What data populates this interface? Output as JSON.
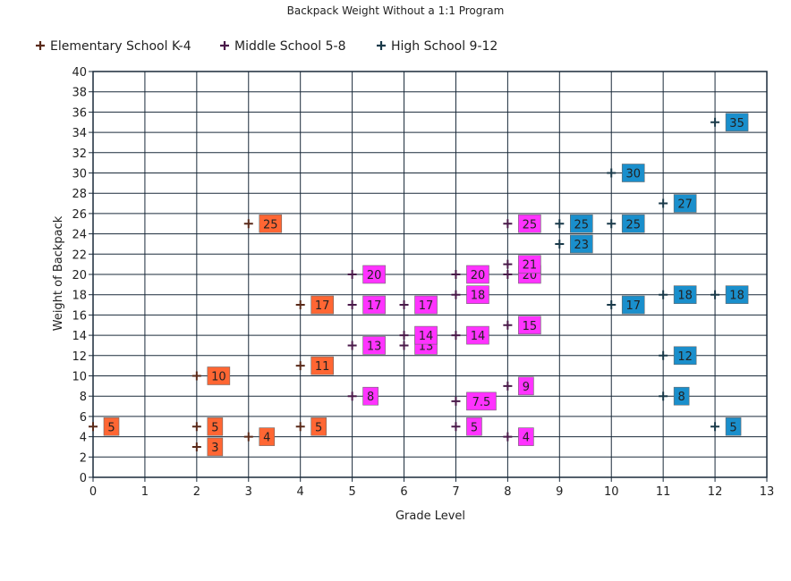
{
  "chart_data": {
    "type": "scatter",
    "title": "Backpack Weight Without a 1:1 Program",
    "xlabel": "Grade Level",
    "ylabel": "Weight of Backpack",
    "xlim": [
      0,
      13
    ],
    "ylim": [
      0,
      40
    ],
    "x_ticks": [
      "0",
      "1",
      "2",
      "3",
      "4",
      "5",
      "6",
      "7",
      "8",
      "9",
      "10",
      "11",
      "12",
      "13"
    ],
    "y_ticks": [
      "0",
      "2",
      "4",
      "6",
      "8",
      "10",
      "12",
      "14",
      "16",
      "18",
      "20",
      "22",
      "24",
      "26",
      "28",
      "30",
      "32",
      "34",
      "36",
      "38",
      "40"
    ],
    "grid": true,
    "legend_position": "top",
    "series": [
      {
        "name": "Elementary School K-4",
        "color": "#ff6633",
        "marker_color": "#5a2a1a",
        "points": [
          {
            "x": 0,
            "y": 5,
            "label": "5"
          },
          {
            "x": 2,
            "y": 5,
            "label": "5"
          },
          {
            "x": 2,
            "y": 3,
            "label": "3"
          },
          {
            "x": 2,
            "y": 10,
            "label": "10"
          },
          {
            "x": 3,
            "y": 25,
            "label": "25"
          },
          {
            "x": 3,
            "y": 4,
            "label": "4"
          },
          {
            "x": 4,
            "y": 17,
            "label": "17"
          },
          {
            "x": 4,
            "y": 11,
            "label": "11"
          },
          {
            "x": 4,
            "y": 5,
            "label": "5"
          }
        ]
      },
      {
        "name": "Middle School 5-8",
        "color": "#ff33ff",
        "marker_color": "#4a1a4a",
        "points": [
          {
            "x": 5,
            "y": 20,
            "label": "20"
          },
          {
            "x": 5,
            "y": 17,
            "label": "17"
          },
          {
            "x": 5,
            "y": 13,
            "label": "13"
          },
          {
            "x": 5,
            "y": 8,
            "label": "8"
          },
          {
            "x": 6,
            "y": 17,
            "label": "17"
          },
          {
            "x": 6,
            "y": 13,
            "label": "13"
          },
          {
            "x": 6,
            "y": 14,
            "label": "14"
          },
          {
            "x": 7,
            "y": 20,
            "label": "20"
          },
          {
            "x": 7,
            "y": 18,
            "label": "18"
          },
          {
            "x": 7,
            "y": 14,
            "label": "14"
          },
          {
            "x": 7,
            "y": 7.5,
            "label": "7.5"
          },
          {
            "x": 7,
            "y": 5,
            "label": "5"
          },
          {
            "x": 8,
            "y": 25,
            "label": "25"
          },
          {
            "x": 8,
            "y": 20,
            "label": "20"
          },
          {
            "x": 8,
            "y": 21,
            "label": "21"
          },
          {
            "x": 8,
            "y": 15,
            "label": "15"
          },
          {
            "x": 8,
            "y": 9,
            "label": "9"
          },
          {
            "x": 8,
            "y": 4,
            "label": "4"
          }
        ]
      },
      {
        "name": "High School 9-12",
        "color": "#1a8fcc",
        "marker_color": "#1a3a4a",
        "points": [
          {
            "x": 9,
            "y": 25,
            "label": "25"
          },
          {
            "x": 9,
            "y": 23,
            "label": "23"
          },
          {
            "x": 10,
            "y": 30,
            "label": "30"
          },
          {
            "x": 10,
            "y": 25,
            "label": "25"
          },
          {
            "x": 10,
            "y": 17,
            "label": "17"
          },
          {
            "x": 11,
            "y": 27,
            "label": "27"
          },
          {
            "x": 11,
            "y": 18,
            "label": "18"
          },
          {
            "x": 11,
            "y": 12,
            "label": "12"
          },
          {
            "x": 11,
            "y": 8,
            "label": "8"
          },
          {
            "x": 12,
            "y": 35,
            "label": "35"
          },
          {
            "x": 12,
            "y": 18,
            "label": "18"
          },
          {
            "x": 12,
            "y": 5,
            "label": "5"
          }
        ]
      }
    ]
  }
}
